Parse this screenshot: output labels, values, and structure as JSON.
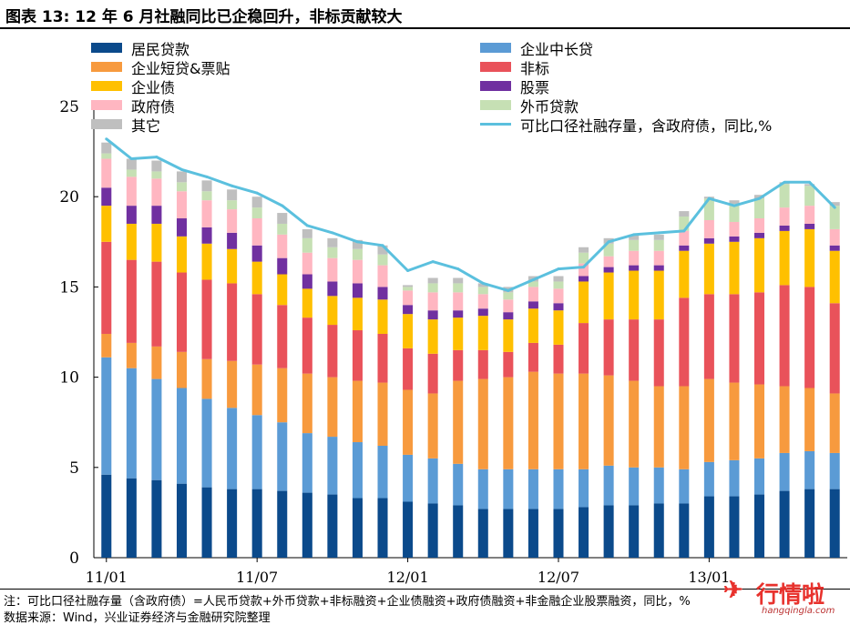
{
  "title": "图表 13:  12 年 6 月社融同比已企稳回升，非标贡献较大",
  "notes": {
    "line1": "注：可比口径社融存量（含政府债）=人民币贷款+外币贷款+非标融资+企业债融资+政府债融资+非金融企业股票融资，同比，%",
    "line2": "数据来源：Wind，兴业证券经济与金融研究院整理"
  },
  "watermark": {
    "logo": "✈",
    "brand": "行情啦",
    "url": "hangqingla.com"
  },
  "chart_data": {
    "type": "bar",
    "stacked": true,
    "ylim": [
      0,
      25
    ],
    "yticks": [
      0,
      5,
      10,
      15,
      20,
      25
    ],
    "x_tick_labels": [
      {
        "label": "11/01",
        "index": 0
      },
      {
        "label": "11/07",
        "index": 6
      },
      {
        "label": "12/01",
        "index": 12
      },
      {
        "label": "12/07",
        "index": 18
      },
      {
        "label": "13/01",
        "index": 24
      }
    ],
    "categories": [
      "2011-01",
      "2011-02",
      "2011-03",
      "2011-04",
      "2011-05",
      "2011-06",
      "2011-07",
      "2011-08",
      "2011-09",
      "2011-10",
      "2011-11",
      "2011-12",
      "2012-01",
      "2012-02",
      "2012-03",
      "2012-04",
      "2012-05",
      "2012-06",
      "2012-07",
      "2012-08",
      "2012-09",
      "2012-10",
      "2012-11",
      "2012-12",
      "2013-01",
      "2013-02",
      "2013-03",
      "2013-04",
      "2013-05",
      "2013-06"
    ],
    "series": [
      {
        "name": "居民贷款",
        "color": "#0b4a8b",
        "values": [
          4.6,
          4.4,
          4.3,
          4.1,
          3.9,
          3.8,
          3.8,
          3.7,
          3.6,
          3.5,
          3.3,
          3.3,
          3.1,
          3.0,
          2.9,
          2.7,
          2.7,
          2.7,
          2.7,
          2.8,
          2.9,
          2.9,
          3.0,
          3.0,
          3.4,
          3.4,
          3.5,
          3.7,
          3.8,
          3.8
        ]
      },
      {
        "name": "企业中长贷",
        "color": "#5b9bd5",
        "values": [
          6.5,
          6.1,
          5.6,
          5.3,
          4.9,
          4.5,
          4.1,
          3.8,
          3.3,
          3.2,
          3.1,
          2.9,
          2.6,
          2.5,
          2.3,
          2.2,
          2.2,
          2.2,
          2.2,
          2.1,
          2.2,
          2.1,
          2.0,
          1.9,
          1.9,
          2.0,
          2.0,
          2.1,
          2.1,
          2.0
        ]
      },
      {
        "name": "企业短贷&票贴",
        "color": "#f79a3e",
        "values": [
          1.3,
          1.4,
          1.8,
          2.0,
          2.2,
          2.6,
          2.8,
          3.0,
          3.3,
          3.3,
          3.4,
          3.5,
          3.6,
          3.6,
          4.6,
          5.0,
          5.1,
          5.4,
          5.3,
          5.3,
          5.0,
          4.8,
          4.5,
          4.6,
          4.6,
          4.3,
          4.1,
          3.7,
          3.5,
          3.3
        ]
      },
      {
        "name": "非标",
        "color": "#e9525a",
        "values": [
          5.1,
          4.6,
          4.7,
          4.4,
          4.4,
          4.3,
          3.9,
          3.5,
          3.1,
          2.9,
          2.8,
          2.7,
          2.3,
          2.2,
          1.7,
          1.6,
          1.4,
          1.6,
          1.6,
          2.8,
          3.1,
          3.4,
          3.7,
          4.9,
          4.7,
          4.9,
          5.1,
          5.6,
          5.6,
          5.0
        ]
      },
      {
        "name": "企业债",
        "color": "#ffc000",
        "values": [
          2.0,
          2.0,
          2.1,
          2.0,
          2.0,
          1.9,
          1.8,
          1.7,
          1.6,
          1.6,
          1.8,
          1.9,
          1.9,
          1.9,
          1.8,
          1.9,
          1.8,
          1.9,
          1.9,
          2.3,
          2.6,
          2.7,
          2.7,
          2.6,
          2.8,
          2.9,
          3.0,
          3.0,
          3.2,
          2.9
        ]
      },
      {
        "name": "股票",
        "color": "#7030a0",
        "values": [
          1.0,
          1.0,
          1.0,
          1.0,
          0.9,
          0.9,
          0.9,
          0.9,
          0.8,
          0.8,
          0.8,
          0.7,
          0.5,
          0.5,
          0.4,
          0.4,
          0.4,
          0.4,
          0.4,
          0.3,
          0.3,
          0.3,
          0.3,
          0.3,
          0.3,
          0.3,
          0.3,
          0.3,
          0.3,
          0.3
        ]
      },
      {
        "name": "政府债",
        "color": "#ffb6c1",
        "values": [
          1.6,
          1.6,
          1.5,
          1.5,
          1.5,
          1.3,
          1.5,
          1.3,
          1.2,
          1.3,
          1.3,
          1.2,
          0.8,
          1.0,
          1.0,
          0.8,
          0.7,
          0.8,
          0.8,
          0.7,
          0.6,
          0.8,
          0.8,
          0.8,
          1.0,
          0.8,
          0.8,
          1.0,
          1.0,
          0.9
        ]
      },
      {
        "name": "外币贷款",
        "color": "#c6e0b4",
        "values": [
          0.3,
          0.4,
          0.4,
          0.5,
          0.5,
          0.5,
          0.6,
          0.6,
          0.8,
          0.6,
          0.6,
          0.6,
          0.2,
          0.5,
          0.5,
          0.4,
          0.4,
          0.3,
          0.4,
          0.6,
          0.7,
          0.6,
          0.6,
          0.8,
          1.2,
          1.0,
          1.1,
          1.3,
          1.1,
          1.3
        ]
      },
      {
        "name": "其它",
        "color": "#bfbfbf",
        "values": [
          0.6,
          0.6,
          0.6,
          0.6,
          0.6,
          0.6,
          0.6,
          0.6,
          0.5,
          0.5,
          0.5,
          0.5,
          0.1,
          0.3,
          0.3,
          0.2,
          0.3,
          0.3,
          0.3,
          0.3,
          0.3,
          0.3,
          0.3,
          0.3,
          0.1,
          0.2,
          0.2,
          0.1,
          0.1,
          0.2
        ]
      }
    ],
    "line": {
      "name": "可比口径社融存量，含政府债，同比,%",
      "color": "#5bc0de",
      "values": [
        23.2,
        22.1,
        22.2,
        21.5,
        21.1,
        20.6,
        20.2,
        19.5,
        18.4,
        18.0,
        17.5,
        17.3,
        15.9,
        16.4,
        16.0,
        15.2,
        14.8,
        15.4,
        16.0,
        16.1,
        17.5,
        17.9,
        18.0,
        18.1,
        19.9,
        19.5,
        19.9,
        20.8,
        20.8,
        19.4
      ]
    }
  }
}
